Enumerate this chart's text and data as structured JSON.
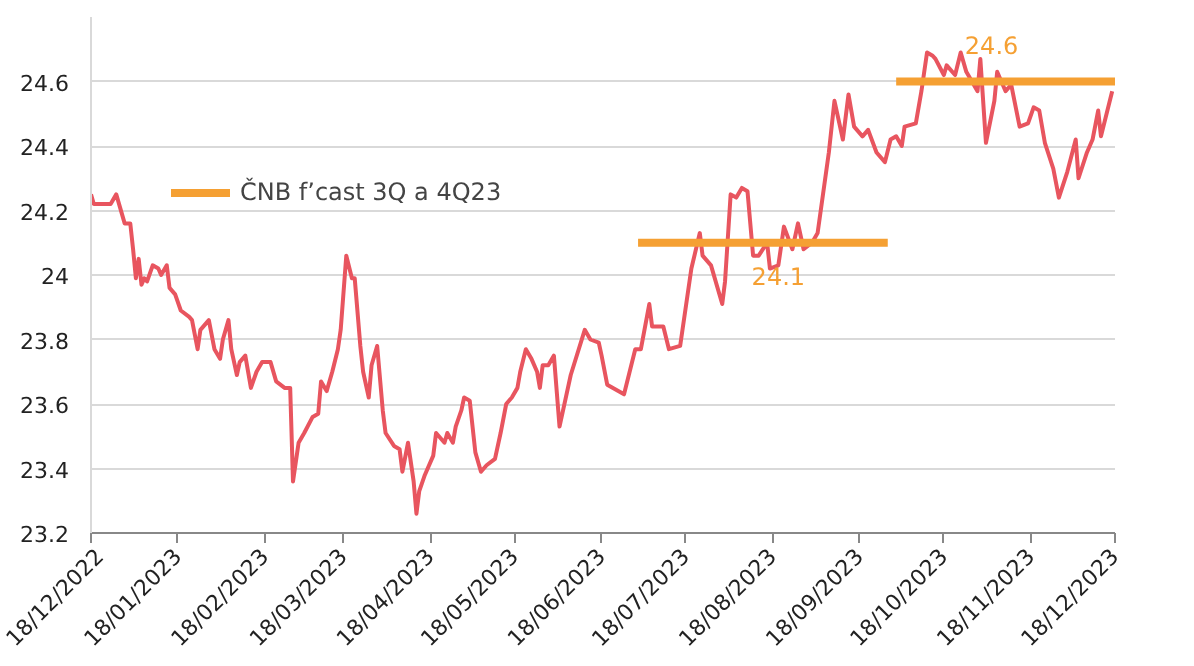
{
  "chart_data": {
    "type": "line",
    "x": [
      "2022-12-18",
      "2022-12-19",
      "2022-12-22",
      "2022-12-25",
      "2022-12-27",
      "2022-12-30",
      "2023-01-01",
      "2023-01-02",
      "2023-01-03",
      "2023-01-04",
      "2023-01-05",
      "2023-01-06",
      "2023-01-07",
      "2023-01-09",
      "2023-01-11",
      "2023-01-12",
      "2023-01-14",
      "2023-01-15",
      "2023-01-17",
      "2023-01-19",
      "2023-01-22",
      "2023-01-23",
      "2023-01-25",
      "2023-01-26",
      "2023-01-29",
      "2023-01-31",
      "2023-02-02",
      "2023-02-03",
      "2023-02-05",
      "2023-02-06",
      "2023-02-08",
      "2023-02-09",
      "2023-02-11",
      "2023-02-13",
      "2023-02-15",
      "2023-02-17",
      "2023-02-20",
      "2023-02-22",
      "2023-02-25",
      "2023-02-27",
      "2023-02-28",
      "2023-03-02",
      "2023-03-04",
      "2023-03-07",
      "2023-03-09",
      "2023-03-10",
      "2023-03-12",
      "2023-03-14",
      "2023-03-16",
      "2023-03-17",
      "2023-03-19",
      "2023-03-21",
      "2023-03-22",
      "2023-03-24",
      "2023-03-25",
      "2023-03-27",
      "2023-03-28",
      "2023-03-30",
      "2023-04-01",
      "2023-04-02",
      "2023-04-05",
      "2023-04-07",
      "2023-04-08",
      "2023-04-10",
      "2023-04-12",
      "2023-04-13",
      "2023-04-14",
      "2023-04-16",
      "2023-04-19",
      "2023-04-20",
      "2023-04-21",
      "2023-04-23",
      "2023-04-24",
      "2023-04-26",
      "2023-04-27",
      "2023-04-29",
      "2023-04-30",
      "2023-05-02",
      "2023-05-04",
      "2023-05-06",
      "2023-05-08",
      "2023-05-11",
      "2023-05-13",
      "2023-05-15",
      "2023-05-17",
      "2023-05-19",
      "2023-05-20",
      "2023-05-22",
      "2023-05-24",
      "2023-05-26",
      "2023-05-27",
      "2023-05-28",
      "2023-05-30",
      "2023-06-01",
      "2023-06-03",
      "2023-06-07",
      "2023-06-12",
      "2023-06-14",
      "2023-06-17",
      "2023-06-18",
      "2023-06-20",
      "2023-06-26",
      "2023-06-30",
      "2023-07-02",
      "2023-07-05",
      "2023-07-06",
      "2023-07-10",
      "2023-07-12",
      "2023-07-16",
      "2023-07-20",
      "2023-07-23",
      "2023-07-24",
      "2023-07-27",
      "2023-07-31",
      "2023-08-01",
      "2023-08-03",
      "2023-08-05",
      "2023-08-07",
      "2023-08-09",
      "2023-08-11",
      "2023-08-13",
      "2023-08-16",
      "2023-08-17",
      "2023-08-20",
      "2023-08-22",
      "2023-08-25",
      "2023-08-27",
      "2023-08-29",
      "2023-09-01",
      "2023-09-03",
      "2023-09-07",
      "2023-09-09",
      "2023-09-12",
      "2023-09-14",
      "2023-09-16",
      "2023-09-19",
      "2023-09-21",
      "2023-09-24",
      "2023-09-27",
      "2023-09-29",
      "2023-10-01",
      "2023-10-03",
      "2023-10-04",
      "2023-10-08",
      "2023-10-10",
      "2023-10-12",
      "2023-10-14",
      "2023-10-15",
      "2023-10-18",
      "2023-10-19",
      "2023-10-22",
      "2023-10-24",
      "2023-10-26",
      "2023-10-30",
      "2023-10-31",
      "2023-11-02",
      "2023-11-05",
      "2023-11-06",
      "2023-11-09",
      "2023-11-11",
      "2023-11-14",
      "2023-11-17",
      "2023-11-19",
      "2023-11-21",
      "2023-11-23",
      "2023-11-26",
      "2023-11-28",
      "2023-12-01",
      "2023-12-04",
      "2023-12-05",
      "2023-12-08",
      "2023-12-10",
      "2023-12-12",
      "2023-12-13",
      "2023-12-17"
    ],
    "series": [
      {
        "color": "#e8555f",
        "values": [
          24.25,
          24.22,
          24.22,
          24.22,
          24.25,
          24.16,
          24.16,
          24.08,
          23.99,
          24.05,
          23.97,
          23.99,
          23.98,
          24.03,
          24.02,
          24.0,
          24.03,
          23.96,
          23.94,
          23.89,
          23.87,
          23.86,
          23.77,
          23.83,
          23.86,
          23.77,
          23.74,
          23.8,
          23.86,
          23.77,
          23.69,
          23.73,
          23.75,
          23.65,
          23.7,
          23.73,
          23.73,
          23.67,
          23.65,
          23.65,
          23.36,
          23.48,
          23.51,
          23.56,
          23.57,
          23.67,
          23.64,
          23.7,
          23.77,
          23.83,
          24.06,
          23.99,
          23.99,
          23.78,
          23.7,
          23.62,
          23.72,
          23.78,
          23.58,
          23.51,
          23.47,
          23.46,
          23.39,
          23.48,
          23.36,
          23.26,
          23.33,
          23.38,
          23.44,
          23.51,
          23.5,
          23.48,
          23.51,
          23.48,
          23.53,
          23.58,
          23.62,
          23.61,
          23.45,
          23.39,
          23.41,
          23.43,
          23.51,
          23.6,
          23.62,
          23.65,
          23.7,
          23.77,
          23.74,
          23.7,
          23.65,
          23.72,
          23.72,
          23.75,
          23.53,
          23.69,
          23.83,
          23.8,
          23.79,
          23.75,
          23.66,
          23.63,
          23.77,
          23.77,
          23.91,
          23.84,
          23.84,
          23.77,
          23.78,
          24.02,
          24.13,
          24.06,
          24.03,
          23.91,
          23.98,
          24.25,
          24.24,
          24.27,
          24.26,
          24.06,
          24.06,
          24.1,
          24.02,
          24.03,
          24.15,
          24.08,
          24.16,
          24.08,
          24.1,
          24.13,
          24.38,
          24.54,
          24.42,
          24.56,
          24.46,
          24.43,
          24.45,
          24.38,
          24.35,
          24.42,
          24.43,
          24.4,
          24.46,
          24.47,
          24.57,
          24.69,
          24.68,
          24.67,
          24.62,
          24.65,
          24.62,
          24.69,
          24.63,
          24.57,
          24.67,
          24.41,
          24.54,
          24.63,
          24.57,
          24.59,
          24.46,
          24.47,
          24.52,
          24.51,
          24.41,
          24.33,
          24.24,
          24.32,
          24.42,
          24.3,
          24.38,
          24.42,
          24.51,
          24.43,
          24.57
        ]
      },
      {
        "name": "ČNB f’cast 3Q a 4Q23",
        "color": "#f5a033",
        "x": [
          "2023-07-01",
          "2023-09-28",
          "2023-09-30",
          "2023-10-01",
          "2023-12-18"
        ],
        "values": [
          24.1,
          24.1,
          null,
          24.6,
          24.6
        ]
      }
    ],
    "annotations": [
      {
        "text": "24.1",
        "x": "2023-08-20",
        "y": 24.1
      },
      {
        "text": "24.6",
        "x": "2023-11-04",
        "y": 24.6
      }
    ],
    "xlim": [
      "2022-12-18",
      "2023-12-18"
    ],
    "xticks": [
      {
        "value": "2022-12-18",
        "label": "18/12/2022"
      },
      {
        "value": "2023-01-18",
        "label": "18/01/2023"
      },
      {
        "value": "2023-02-18",
        "label": "18/02/2023"
      },
      {
        "value": "2023-03-18",
        "label": "18/03/2023"
      },
      {
        "value": "2023-04-18",
        "label": "18/04/2023"
      },
      {
        "value": "2023-05-18",
        "label": "18/05/2023"
      },
      {
        "value": "2023-06-18",
        "label": "18/06/2023"
      },
      {
        "value": "2023-07-18",
        "label": "18/07/2023"
      },
      {
        "value": "2023-08-18",
        "label": "18/08/2023"
      },
      {
        "value": "2023-09-18",
        "label": "18/09/2023"
      },
      {
        "value": "2023-10-18",
        "label": "18/10/2023"
      },
      {
        "value": "2023-11-18",
        "label": "18/11/2023"
      },
      {
        "value": "2023-12-18",
        "label": "18/12/2023"
      }
    ],
    "ylim": [
      23.2,
      24.8
    ],
    "yticks": [
      23.2,
      23.4,
      23.6,
      23.8,
      {
        "value": 24,
        "label": "24"
      },
      24.2,
      24.4,
      24.6
    ],
    "grid": "y",
    "legend": "top left",
    "marker": "none",
    "line_style": "solid"
  }
}
